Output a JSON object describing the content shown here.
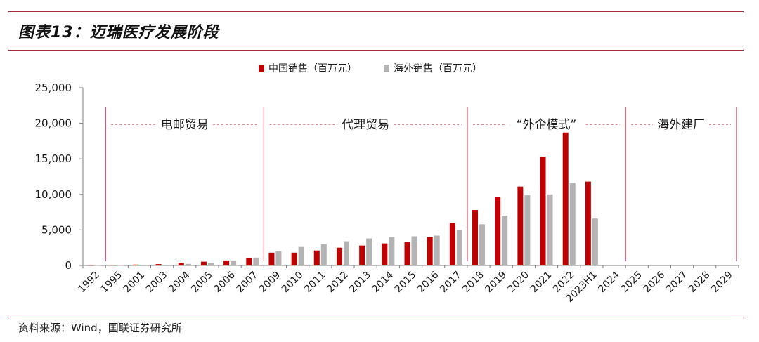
{
  "figure": {
    "title": "图表13：迈瑞医疗发展阶段"
  },
  "source_note": "资料来源：Wind，国联证券研究所",
  "colors": {
    "china": "#c00000",
    "overseas": "#b3b3b3",
    "phase_line": "#c8102e",
    "rule": "#a52a3a"
  },
  "chart_data": {
    "type": "bar",
    "title": "",
    "xlabel": "",
    "ylabel": "",
    "ylim": [
      0,
      25000
    ],
    "yticks": [
      0,
      5000,
      10000,
      15000,
      20000,
      25000
    ],
    "ytick_labels": [
      "0",
      "5,000",
      "10,000",
      "15,000",
      "20,000",
      "25,000"
    ],
    "grid": false,
    "legend_position": "top-center",
    "categories": [
      "1992",
      "1995",
      "2001",
      "2003",
      "2004",
      "2005",
      "2006",
      "2007",
      "2009",
      "2010",
      "2011",
      "2012",
      "2013",
      "2014",
      "2015",
      "2016",
      "2017",
      "2018",
      "2019",
      "2020",
      "2021",
      "2022",
      "2023H1",
      "2024",
      "2025",
      "2026",
      "2027",
      "2028",
      "2029"
    ],
    "series": [
      {
        "name": "中国销售（百万元）",
        "values": [
          30,
          60,
          120,
          190,
          390,
          530,
          700,
          1000,
          1800,
          1800,
          2100,
          2500,
          2800,
          3100,
          3300,
          4000,
          6000,
          7800,
          9600,
          11100,
          15300,
          18700,
          11800,
          null,
          null,
          null,
          null,
          null,
          null
        ]
      },
      {
        "name": "海外销售（百万元）",
        "values": [
          5,
          10,
          40,
          70,
          220,
          320,
          700,
          1100,
          2000,
          2600,
          3000,
          3400,
          3800,
          4000,
          4100,
          4200,
          5000,
          5800,
          7000,
          9900,
          10000,
          11600,
          6600,
          null,
          null,
          null,
          null,
          null,
          null
        ]
      }
    ],
    "phases": [
      {
        "label": "电邮贸易",
        "start_index": 0,
        "end_index": 7
      },
      {
        "label": "代理贸易",
        "start_index": 8,
        "end_index": 16
      },
      {
        "label": "“外企模式”",
        "start_index": 17,
        "end_index": 22
      },
      {
        "label": "海外建厂",
        "start_index": 23,
        "end_index": 28
      }
    ]
  }
}
